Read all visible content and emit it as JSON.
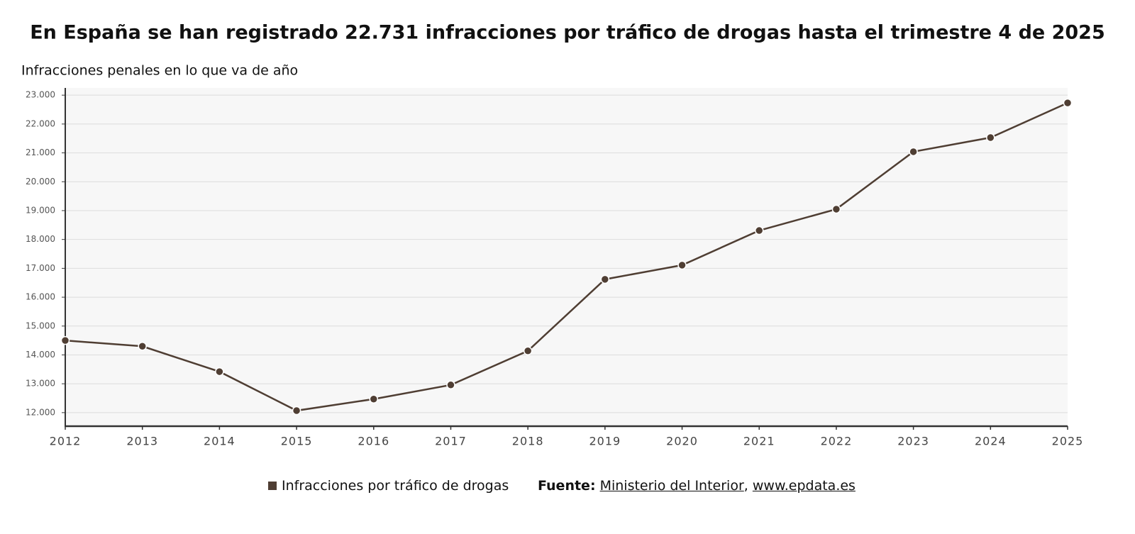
{
  "chart_data": {
    "type": "line",
    "title": "En España se han registrado 22.731 infracciones por tráfico de drogas hasta el trimestre 4 de 2025",
    "y_label": "Infracciones penales en lo que va de año",
    "x": [
      2012,
      2013,
      2014,
      2015,
      2016,
      2017,
      2018,
      2019,
      2020,
      2021,
      2022,
      2023,
      2024,
      2025
    ],
    "xlim": [
      2012,
      2025
    ],
    "xticks": [
      2012,
      2013,
      2014,
      2015,
      2016,
      2017,
      2018,
      2019,
      2020,
      2021,
      2022,
      2023,
      2024,
      2025
    ],
    "series": [
      {
        "name": "Infracciones por tráfico de drogas",
        "color": "#4f3e33",
        "values": [
          14500,
          14300,
          13420,
          12070,
          12470,
          12960,
          14140,
          16620,
          17110,
          18310,
          19050,
          21040,
          21530,
          22731
        ]
      }
    ],
    "ylim": [
      11530,
      23250
    ],
    "yticks": [
      {
        "value": 12000,
        "label": "12.000"
      },
      {
        "value": 13000,
        "label": "13.000"
      },
      {
        "value": 14000,
        "label": "14.000"
      },
      {
        "value": 15000,
        "label": "15.000"
      },
      {
        "value": 16000,
        "label": "16.000"
      },
      {
        "value": 17000,
        "label": "17.000"
      },
      {
        "value": 18000,
        "label": "18.000"
      },
      {
        "value": 19000,
        "label": "19.000"
      },
      {
        "value": 20000,
        "label": "20.000"
      },
      {
        "value": 21000,
        "label": "21.000"
      },
      {
        "value": 22000,
        "label": "22.000"
      },
      {
        "value": 23000,
        "label": "23.000"
      }
    ],
    "grid": true,
    "source_label": "Fuente:",
    "sources": [
      "Ministerio del Interior",
      "www.epdata.es"
    ],
    "source_separator": ","
  }
}
